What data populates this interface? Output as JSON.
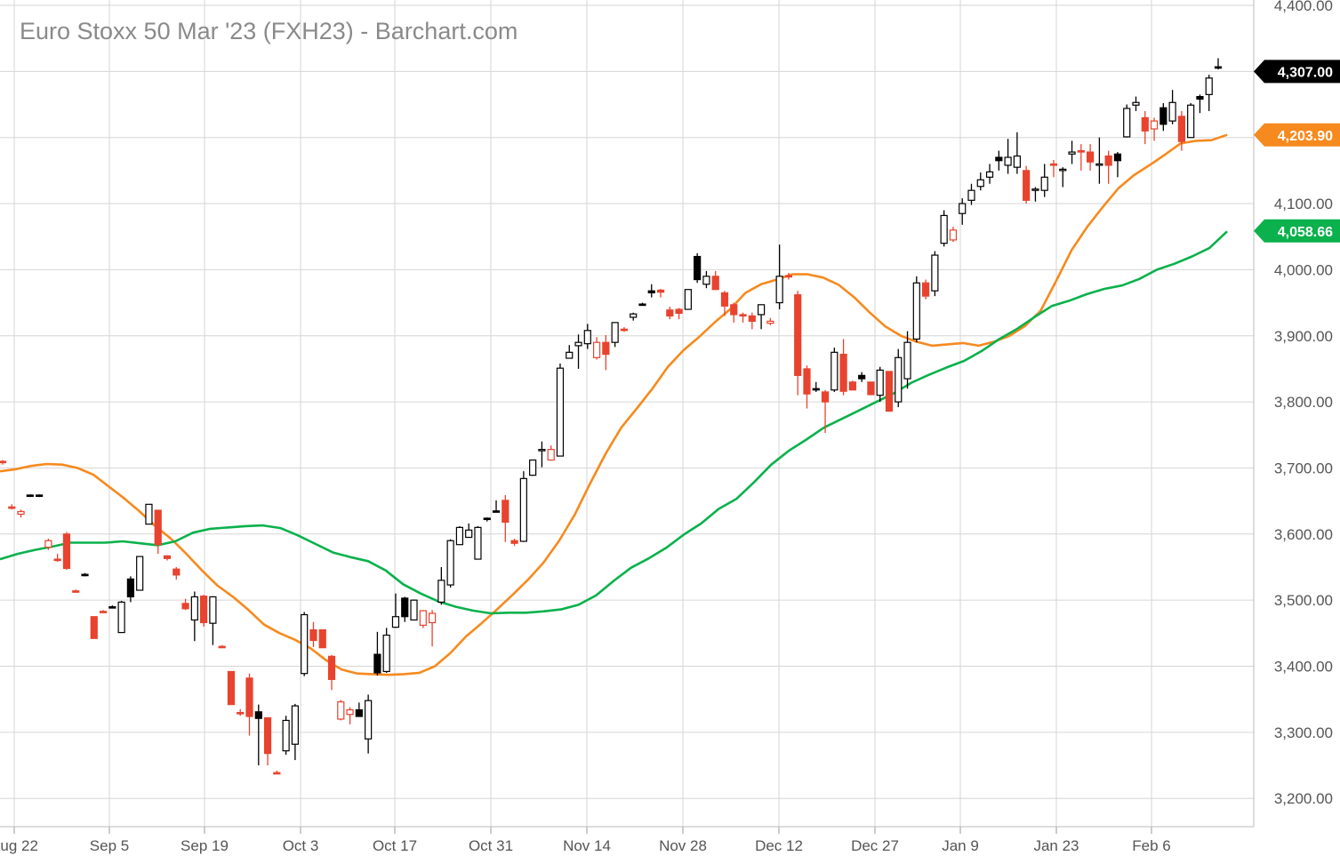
{
  "chart_data": {
    "type": "candlestick",
    "title": "Euro Stoxx 50 Mar '23 (FXH23) - Barchart.com",
    "y_tick_labels": [
      "4,400.00",
      "4,307.00",
      "4,203.90",
      "4,100.00",
      "4,058.66",
      "4,000.00",
      "3,900.00",
      "3,800.00",
      "3,700.00",
      "3,600.00",
      "3,500.00",
      "3,400.00",
      "3,300.00",
      "3,200.00"
    ],
    "y_ticks": [
      4400,
      4300,
      4200,
      4100,
      4000,
      3900,
      3800,
      3700,
      3600,
      3500,
      3400,
      3300,
      3200
    ],
    "x_tick_labels": [
      "Aug 22",
      "Sep 5",
      "Sep 19",
      "Oct 3",
      "Oct 17",
      "Oct 31",
      "Nov 14",
      "Nov 28",
      "Dec 12",
      "Dec 27",
      "Jan 9",
      "Jan 23",
      "Feb 6"
    ],
    "ylim": [
      3160,
      4405
    ],
    "grid": true,
    "colors": {
      "up": "#ffffff",
      "down_filled": "#e8432e",
      "black": "#000000",
      "ma_fast": "#f68a1e",
      "ma_slow": "#0ab14c",
      "grid": "#d6d6d6"
    },
    "last_price": "4,307.00",
    "ma_fast_label": "4,203.90",
    "ma_slow_label": "4,058.66",
    "candles": [
      {
        "o": 3708,
        "h": 3712,
        "l": 3705,
        "c": 3710,
        "k": "red"
      },
      {
        "o": 3640,
        "h": 3645,
        "l": 3637,
        "c": 3641,
        "k": "red"
      },
      {
        "o": 3630,
        "h": 3637,
        "l": 3625,
        "c": 3634,
        "k": "red-open"
      },
      {
        "o": 3658,
        "h": 3660,
        "l": 3656,
        "c": 3659,
        "k": "black"
      },
      {
        "o": 3658,
        "h": 3660,
        "l": 3656,
        "c": 3659,
        "k": "black"
      },
      {
        "o": 3590,
        "h": 3593,
        "l": 3576,
        "c": 3580,
        "k": "red-open"
      },
      {
        "o": 3562,
        "h": 3570,
        "l": 3558,
        "c": 3562,
        "k": "red"
      },
      {
        "o": 3600,
        "h": 3603,
        "l": 3546,
        "c": 3548,
        "k": "red"
      },
      {
        "o": 3514,
        "h": 3516,
        "l": 3511,
        "c": 3514,
        "k": "red"
      },
      {
        "o": 3539,
        "h": 3541,
        "l": 3536,
        "c": 3539,
        "k": "black"
      },
      {
        "o": 3475,
        "h": 3475,
        "l": 3442,
        "c": 3442,
        "k": "red"
      },
      {
        "o": 3483,
        "h": 3485,
        "l": 3481,
        "c": 3483,
        "k": "red"
      },
      {
        "o": 3490,
        "h": 3492,
        "l": 3488,
        "c": 3490,
        "k": "black"
      },
      {
        "o": 3451,
        "h": 3499,
        "l": 3451,
        "c": 3497,
        "k": "up"
      },
      {
        "o": 3532,
        "h": 3536,
        "l": 3497,
        "c": 3505,
        "k": "black"
      },
      {
        "o": 3515,
        "h": 3566,
        "l": 3515,
        "c": 3566,
        "k": "up"
      },
      {
        "o": 3645,
        "h": 3645,
        "l": 3615,
        "c": 3615,
        "k": "up"
      },
      {
        "o": 3636,
        "h": 3636,
        "l": 3570,
        "c": 3584,
        "k": "red"
      },
      {
        "o": 3567,
        "h": 3568,
        "l": 3560,
        "c": 3563,
        "k": "red"
      },
      {
        "o": 3547,
        "h": 3550,
        "l": 3531,
        "c": 3538,
        "k": "red"
      },
      {
        "o": 3495,
        "h": 3502,
        "l": 3485,
        "c": 3487,
        "k": "red"
      },
      {
        "o": 3470,
        "h": 3513,
        "l": 3438,
        "c": 3505,
        "k": "up"
      },
      {
        "o": 3506,
        "h": 3508,
        "l": 3460,
        "c": 3466,
        "k": "red"
      },
      {
        "o": 3505,
        "h": 3506,
        "l": 3432,
        "c": 3465,
        "k": "up"
      },
      {
        "o": 3430,
        "h": 3432,
        "l": 3428,
        "c": 3430,
        "k": "red"
      },
      {
        "o": 3392,
        "h": 3392,
        "l": 3342,
        "c": 3342,
        "k": "red"
      },
      {
        "o": 3330,
        "h": 3335,
        "l": 3325,
        "c": 3330,
        "k": "red"
      },
      {
        "o": 3382,
        "h": 3389,
        "l": 3295,
        "c": 3324,
        "k": "red"
      },
      {
        "o": 3331,
        "h": 3342,
        "l": 3250,
        "c": 3321,
        "k": "black"
      },
      {
        "o": 3322,
        "h": 3322,
        "l": 3250,
        "c": 3268,
        "k": "red"
      },
      {
        "o": 3239,
        "h": 3242,
        "l": 3237,
        "c": 3239,
        "k": "red"
      },
      {
        "o": 3318,
        "h": 3325,
        "l": 3266,
        "c": 3272,
        "k": "up"
      },
      {
        "o": 3282,
        "h": 3343,
        "l": 3258,
        "c": 3340,
        "k": "up"
      },
      {
        "o": 3389,
        "h": 3482,
        "l": 3385,
        "c": 3478,
        "k": "up"
      },
      {
        "o": 3455,
        "h": 3467,
        "l": 3429,
        "c": 3439,
        "k": "red"
      },
      {
        "o": 3455,
        "h": 3455,
        "l": 3428,
        "c": 3428,
        "k": "red"
      },
      {
        "o": 3415,
        "h": 3417,
        "l": 3364,
        "c": 3380,
        "k": "red"
      },
      {
        "o": 3346,
        "h": 3349,
        "l": 3318,
        "c": 3320,
        "k": "red-open"
      },
      {
        "o": 3334,
        "h": 3338,
        "l": 3312,
        "c": 3327,
        "k": "red-open"
      },
      {
        "o": 3334,
        "h": 3345,
        "l": 3324,
        "c": 3324,
        "k": "black"
      },
      {
        "o": 3290,
        "h": 3357,
        "l": 3268,
        "c": 3348,
        "k": "up"
      },
      {
        "o": 3390,
        "h": 3452,
        "l": 3386,
        "c": 3418,
        "k": "black"
      },
      {
        "o": 3392,
        "h": 3458,
        "l": 3390,
        "c": 3447,
        "k": "up"
      },
      {
        "o": 3459,
        "h": 3510,
        "l": 3458,
        "c": 3475,
        "k": "up"
      },
      {
        "o": 3503,
        "h": 3505,
        "l": 3467,
        "c": 3475,
        "k": "black"
      },
      {
        "o": 3470,
        "h": 3501,
        "l": 3470,
        "c": 3500,
        "k": "up"
      },
      {
        "o": 3484,
        "h": 3485,
        "l": 3458,
        "c": 3462,
        "k": "red-open"
      },
      {
        "o": 3480,
        "h": 3485,
        "l": 3430,
        "c": 3466,
        "k": "red-open"
      },
      {
        "o": 3497,
        "h": 3550,
        "l": 3493,
        "c": 3530,
        "k": "up"
      },
      {
        "o": 3523,
        "h": 3592,
        "l": 3519,
        "c": 3590,
        "k": "up"
      },
      {
        "o": 3584,
        "h": 3612,
        "l": 3584,
        "c": 3610,
        "k": "up"
      },
      {
        "o": 3595,
        "h": 3616,
        "l": 3595,
        "c": 3606,
        "k": "up"
      },
      {
        "o": 3562,
        "h": 3612,
        "l": 3562,
        "c": 3610,
        "k": "up"
      },
      {
        "o": 3622,
        "h": 3625,
        "l": 3619,
        "c": 3624,
        "k": "black"
      },
      {
        "o": 3635,
        "h": 3651,
        "l": 3633,
        "c": 3635,
        "k": "black"
      },
      {
        "o": 3651,
        "h": 3659,
        "l": 3588,
        "c": 3618,
        "k": "red"
      },
      {
        "o": 3590,
        "h": 3593,
        "l": 3582,
        "c": 3586,
        "k": "red"
      },
      {
        "o": 3589,
        "h": 3695,
        "l": 3588,
        "c": 3684,
        "k": "up"
      },
      {
        "o": 3689,
        "h": 3712,
        "l": 3688,
        "c": 3712,
        "k": "up"
      },
      {
        "o": 3728,
        "h": 3740,
        "l": 3701,
        "c": 3728,
        "k": "up"
      },
      {
        "o": 3728,
        "h": 3734,
        "l": 3711,
        "c": 3712,
        "k": "red-open"
      },
      {
        "o": 3718,
        "h": 3858,
        "l": 3718,
        "c": 3851,
        "k": "up"
      },
      {
        "o": 3866,
        "h": 3886,
        "l": 3866,
        "c": 3875,
        "k": "up"
      },
      {
        "o": 3885,
        "h": 3902,
        "l": 3850,
        "c": 3890,
        "k": "up"
      },
      {
        "o": 3888,
        "h": 3918,
        "l": 3880,
        "c": 3908,
        "k": "up"
      },
      {
        "o": 3890,
        "h": 3898,
        "l": 3864,
        "c": 3867,
        "k": "red-open"
      },
      {
        "o": 3890,
        "h": 3901,
        "l": 3848,
        "c": 3872,
        "k": "red"
      },
      {
        "o": 3890,
        "h": 3919,
        "l": 3883,
        "c": 3920,
        "k": "up"
      },
      {
        "o": 3910,
        "h": 3913,
        "l": 3906,
        "c": 3910,
        "k": "red"
      },
      {
        "o": 3928,
        "h": 3935,
        "l": 3923,
        "c": 3933,
        "k": "up"
      },
      {
        "o": 3948,
        "h": 3950,
        "l": 3946,
        "c": 3948,
        "k": "black"
      },
      {
        "o": 3965,
        "h": 3978,
        "l": 3958,
        "c": 3968,
        "k": "black"
      },
      {
        "o": 3969,
        "h": 3971,
        "l": 3958,
        "c": 3966,
        "k": "red"
      },
      {
        "o": 3939,
        "h": 3944,
        "l": 3925,
        "c": 3930,
        "k": "red"
      },
      {
        "o": 3940,
        "h": 3942,
        "l": 3925,
        "c": 3934,
        "k": "red"
      },
      {
        "o": 3940,
        "h": 3970,
        "l": 3940,
        "c": 3970,
        "k": "up"
      },
      {
        "o": 4020,
        "h": 4025,
        "l": 3980,
        "c": 3985,
        "k": "black"
      },
      {
        "o": 3978,
        "h": 3998,
        "l": 3972,
        "c": 3990,
        "k": "up"
      },
      {
        "o": 3990,
        "h": 3998,
        "l": 3970,
        "c": 3970,
        "k": "red"
      },
      {
        "o": 3965,
        "h": 3968,
        "l": 3930,
        "c": 3945,
        "k": "red"
      },
      {
        "o": 3947,
        "h": 3950,
        "l": 3920,
        "c": 3932,
        "k": "red"
      },
      {
        "o": 3930,
        "h": 3935,
        "l": 3920,
        "c": 3932,
        "k": "red"
      },
      {
        "o": 3930,
        "h": 3935,
        "l": 3910,
        "c": 3922,
        "k": "red"
      },
      {
        "o": 3932,
        "h": 3947,
        "l": 3910,
        "c": 3947,
        "k": "up"
      },
      {
        "o": 3922,
        "h": 3927,
        "l": 3916,
        "c": 3919,
        "k": "red-open"
      },
      {
        "o": 3950,
        "h": 4038,
        "l": 3940,
        "c": 3990,
        "k": "up"
      },
      {
        "o": 3990,
        "h": 3995,
        "l": 3985,
        "c": 3991,
        "k": "red"
      },
      {
        "o": 3962,
        "h": 3968,
        "l": 3810,
        "c": 3840,
        "k": "red"
      },
      {
        "o": 3850,
        "h": 3855,
        "l": 3790,
        "c": 3812,
        "k": "red"
      },
      {
        "o": 3820,
        "h": 3830,
        "l": 3815,
        "c": 3820,
        "k": "black"
      },
      {
        "o": 3815,
        "h": 3818,
        "l": 3753,
        "c": 3800,
        "k": "red"
      },
      {
        "o": 3818,
        "h": 3882,
        "l": 3815,
        "c": 3875,
        "k": "up"
      },
      {
        "o": 3872,
        "h": 3895,
        "l": 3810,
        "c": 3816,
        "k": "red"
      },
      {
        "o": 3830,
        "h": 3832,
        "l": 3818,
        "c": 3818,
        "k": "red"
      },
      {
        "o": 3840,
        "h": 3845,
        "l": 3830,
        "c": 3835,
        "k": "black"
      },
      {
        "o": 3830,
        "h": 3830,
        "l": 3810,
        "c": 3811,
        "k": "red"
      },
      {
        "o": 3848,
        "h": 3853,
        "l": 3800,
        "c": 3810,
        "k": "up"
      },
      {
        "o": 3846,
        "h": 3846,
        "l": 3785,
        "c": 3786,
        "k": "red"
      },
      {
        "o": 3800,
        "h": 3880,
        "l": 3792,
        "c": 3867,
        "k": "up"
      },
      {
        "o": 3835,
        "h": 3907,
        "l": 3820,
        "c": 3890,
        "k": "up"
      },
      {
        "o": 3895,
        "h": 3990,
        "l": 3890,
        "c": 3980,
        "k": "up"
      },
      {
        "o": 3980,
        "h": 3985,
        "l": 3955,
        "c": 3960,
        "k": "red"
      },
      {
        "o": 3968,
        "h": 4028,
        "l": 3960,
        "c": 4022,
        "k": "up"
      },
      {
        "o": 4040,
        "h": 4090,
        "l": 4035,
        "c": 4082,
        "k": "up"
      },
      {
        "o": 4060,
        "h": 4065,
        "l": 4042,
        "c": 4045,
        "k": "red-open"
      },
      {
        "o": 4085,
        "h": 4108,
        "l": 4068,
        "c": 4100,
        "k": "up"
      },
      {
        "o": 4105,
        "h": 4130,
        "l": 4098,
        "c": 4120,
        "k": "up"
      },
      {
        "o": 4126,
        "h": 4147,
        "l": 4120,
        "c": 4136,
        "k": "up"
      },
      {
        "o": 4140,
        "h": 4160,
        "l": 4130,
        "c": 4148,
        "k": "up"
      },
      {
        "o": 4170,
        "h": 4180,
        "l": 4150,
        "c": 4165,
        "k": "black"
      },
      {
        "o": 4170,
        "h": 4198,
        "l": 4145,
        "c": 4158,
        "k": "up"
      },
      {
        "o": 4155,
        "h": 4208,
        "l": 4145,
        "c": 4172,
        "k": "up"
      },
      {
        "o": 4150,
        "h": 4157,
        "l": 4100,
        "c": 4105,
        "k": "red"
      },
      {
        "o": 4120,
        "h": 4125,
        "l": 4103,
        "c": 4122,
        "k": "up"
      },
      {
        "o": 4120,
        "h": 4160,
        "l": 4110,
        "c": 4140,
        "k": "up"
      },
      {
        "o": 4160,
        "h": 4166,
        "l": 4140,
        "c": 4159,
        "k": "red"
      },
      {
        "o": 4152,
        "h": 4155,
        "l": 4125,
        "c": 4150,
        "k": "up"
      },
      {
        "o": 4175,
        "h": 4195,
        "l": 4160,
        "c": 4178,
        "k": "up"
      },
      {
        "o": 4180,
        "h": 4190,
        "l": 4150,
        "c": 4180,
        "k": "red"
      },
      {
        "o": 4178,
        "h": 4190,
        "l": 4150,
        "c": 4163,
        "k": "red"
      },
      {
        "o": 4160,
        "h": 4200,
        "l": 4130,
        "c": 4158,
        "k": "up"
      },
      {
        "o": 4172,
        "h": 4180,
        "l": 4130,
        "c": 4158,
        "k": "red"
      },
      {
        "o": 4175,
        "h": 4178,
        "l": 4140,
        "c": 4165,
        "k": "black"
      },
      {
        "o": 4201,
        "h": 4250,
        "l": 4200,
        "c": 4244,
        "k": "up"
      },
      {
        "o": 4249,
        "h": 4262,
        "l": 4240,
        "c": 4253,
        "k": "up"
      },
      {
        "o": 4230,
        "h": 4240,
        "l": 4190,
        "c": 4210,
        "k": "red"
      },
      {
        "o": 4213,
        "h": 4230,
        "l": 4195,
        "c": 4225,
        "k": "red-open"
      },
      {
        "o": 4245,
        "h": 4252,
        "l": 4210,
        "c": 4220,
        "k": "black"
      },
      {
        "o": 4225,
        "h": 4272,
        "l": 4220,
        "c": 4253,
        "k": "up"
      },
      {
        "o": 4232,
        "h": 4240,
        "l": 4180,
        "c": 4194,
        "k": "red"
      },
      {
        "o": 4200,
        "h": 4252,
        "l": 4200,
        "c": 4249,
        "k": "up"
      },
      {
        "o": 4258,
        "h": 4265,
        "l": 4237,
        "c": 4262,
        "k": "black"
      },
      {
        "o": 4265,
        "h": 4295,
        "l": 4240,
        "c": 4290,
        "k": "up"
      },
      {
        "o": 4307,
        "h": 4320,
        "l": 4303,
        "c": 4307,
        "k": "black"
      }
    ],
    "ma_fast": [
      3695,
      3698,
      3703,
      3706,
      3705,
      3700,
      3690,
      3672,
      3654,
      3634,
      3612,
      3593,
      3570,
      3545,
      3522,
      3505,
      3485,
      3463,
      3450,
      3440,
      3427,
      3409,
      3395,
      3389,
      3388,
      3387,
      3388,
      3390,
      3400,
      3420,
      3445,
      3465,
      3486,
      3508,
      3531,
      3557,
      3590,
      3629,
      3677,
      3722,
      3761,
      3790,
      3820,
      3853,
      3878,
      3898,
      3920,
      3940,
      3965,
      3978,
      3985,
      3993,
      3993,
      3988,
      3977,
      3958,
      3935,
      3914,
      3900,
      3891,
      3885,
      3887,
      3889,
      3885,
      3891,
      3900,
      3915,
      3938,
      3983,
      4030,
      4065,
      4095,
      4123,
      4143,
      4158,
      4174,
      4191,
      4195,
      4196,
      4204
    ],
    "ma_slow": [
      3562,
      3570,
      3576,
      3581,
      3587,
      3587,
      3587,
      3589,
      3586,
      3583,
      3589,
      3602,
      3608,
      3610,
      3612,
      3613,
      3609,
      3598,
      3585,
      3572,
      3565,
      3559,
      3545,
      3524,
      3510,
      3498,
      3490,
      3484,
      3480,
      3481,
      3481,
      3483,
      3486,
      3493,
      3507,
      3529,
      3549,
      3563,
      3579,
      3599,
      3616,
      3638,
      3653,
      3678,
      3705,
      3726,
      3743,
      3761,
      3774,
      3787,
      3800,
      3813,
      3829,
      3841,
      3852,
      3862,
      3877,
      3895,
      3910,
      3928,
      3945,
      3953,
      3963,
      3971,
      3976,
      3986,
      4000,
      4009,
      4020,
      4033,
      4058
    ]
  }
}
